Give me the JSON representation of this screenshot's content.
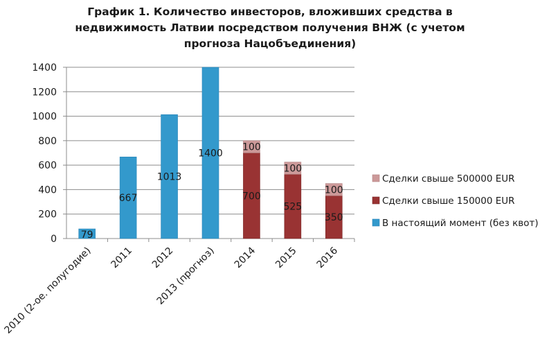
{
  "title_lines": [
    "График 1. Количество инвесторов, вложивших средства в",
    "недвижимость Латвии посредством получения ВНЖ (с учетом",
    "прогноза Нацобъединения)"
  ],
  "chart_data": {
    "type": "bar",
    "stacked": true,
    "title": "График 1. Количество инвесторов, вложивших средства в недвижимость Латвии посредством получения ВНЖ (с учетом прогноза Нацобъединения)",
    "categories": [
      "2010 (2-ое. полугодие)",
      "2011",
      "2012",
      "2013 (прогноз)",
      "2014",
      "2015",
      "2016"
    ],
    "series": [
      {
        "name": "В настоящий момент (без квот)",
        "color": "#3399cc",
        "values": [
          79,
          667,
          1013,
          1400,
          null,
          null,
          null
        ]
      },
      {
        "name": "Сделки свыше 150000 EUR",
        "color": "#993333",
        "values": [
          null,
          null,
          null,
          null,
          700,
          525,
          350
        ]
      },
      {
        "name": "Сделки свыше 500000 EUR",
        "color": "#cc9999",
        "values": [
          null,
          null,
          null,
          null,
          100,
          100,
          100
        ]
      }
    ],
    "ylim": [
      0,
      1400
    ],
    "yticks": [
      0,
      200,
      400,
      600,
      800,
      1000,
      1200,
      1400
    ],
    "grid": true,
    "legend": "right",
    "xlabel": "",
    "ylabel": ""
  }
}
